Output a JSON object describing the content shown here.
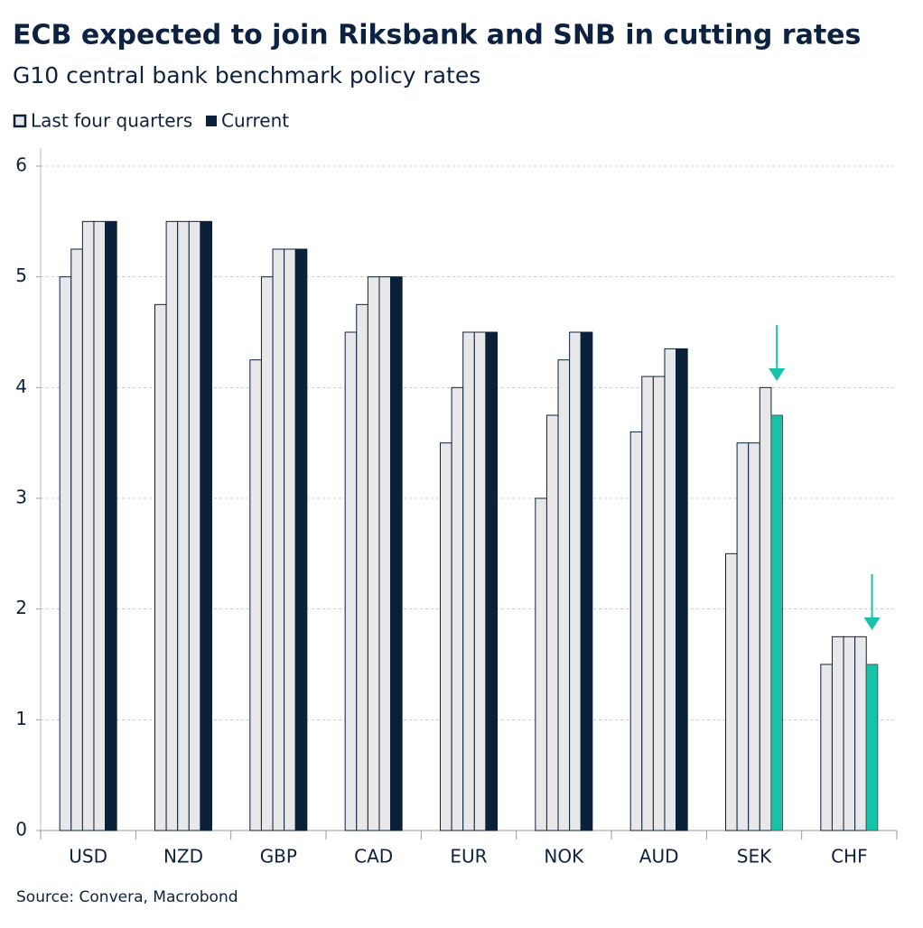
{
  "chart_data": {
    "type": "bar",
    "title": "ECB expected to join Riksbank and SNB in cutting rates",
    "subtitle": "G10 central bank benchmark policy rates",
    "source": "Source: Convera, Macrobond",
    "categories": [
      "USD",
      "NZD",
      "GBP",
      "CAD",
      "EUR",
      "NOK",
      "AUD",
      "SEK",
      "CHF"
    ],
    "series": [
      {
        "name": "Last four quarters",
        "color": "#e8e8ea",
        "values": [
          [
            5,
            5.25,
            5.5,
            5.5
          ],
          [
            4.75,
            5.5,
            5.5,
            5.5
          ],
          [
            4.25,
            5,
            5.25,
            5.25
          ],
          [
            4.5,
            4.75,
            5,
            5
          ],
          [
            3.5,
            4,
            4.5,
            4.5
          ],
          [
            3,
            3.75,
            4.25,
            4.5
          ],
          [
            3.6,
            4.1,
            4.1,
            4.35
          ],
          [
            2.5,
            3.5,
            3.5,
            4
          ],
          [
            1.5,
            1.75,
            1.75,
            1.75
          ]
        ]
      },
      {
        "name": "Current",
        "color": "#0b213a",
        "values": [
          5.5,
          5.5,
          5.25,
          5,
          4.5,
          4.5,
          4.35,
          3.75,
          1.5
        ]
      }
    ],
    "highlight": [
      "SEK",
      "CHF"
    ],
    "highlight_color": "#17c3a8",
    "ylim": [
      0,
      6
    ],
    "yticks": [
      0,
      1,
      2,
      3,
      4,
      5,
      6
    ],
    "grid": true
  }
}
